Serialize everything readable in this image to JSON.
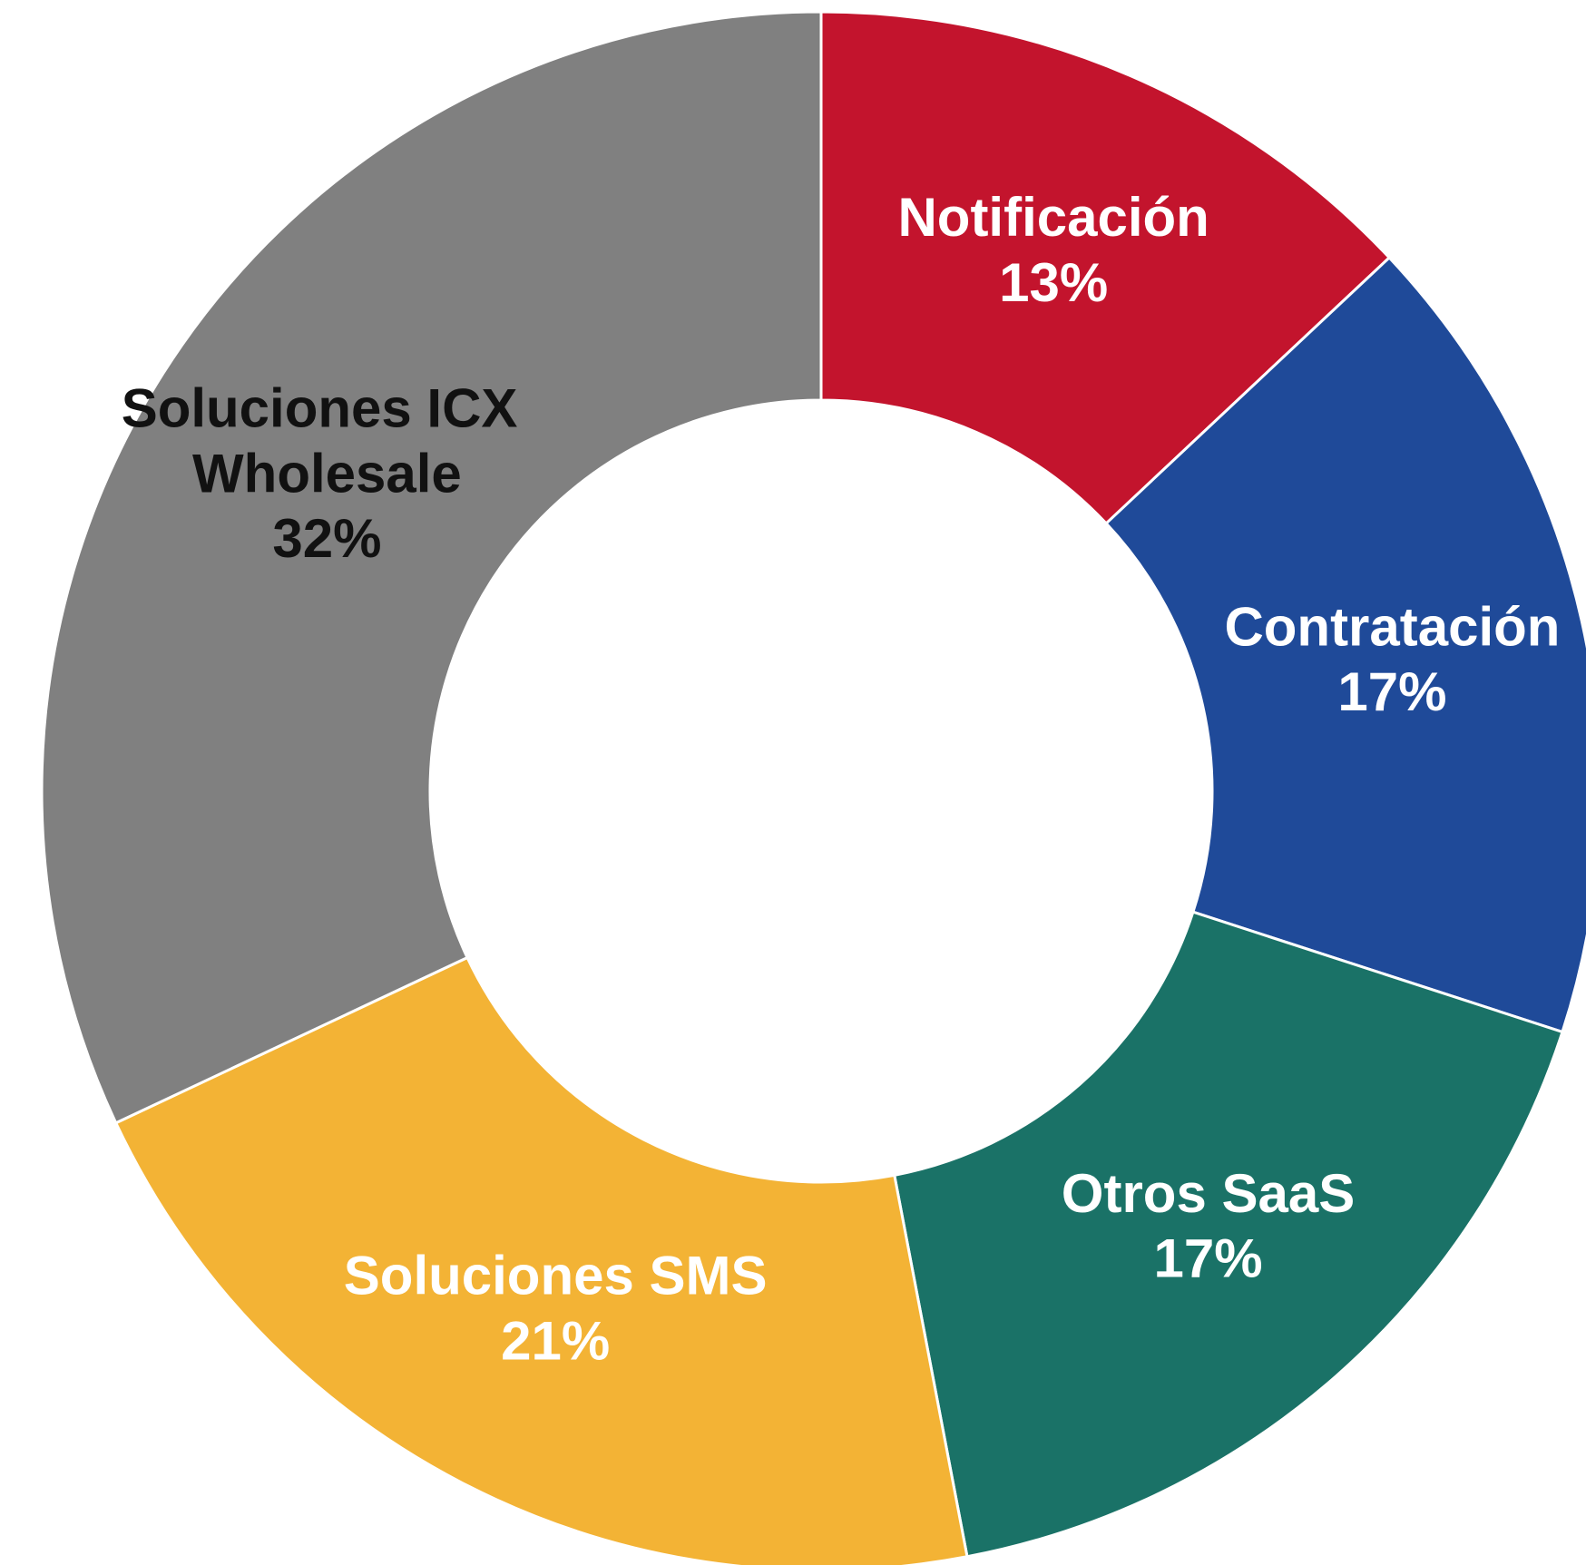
{
  "chart_data": {
    "type": "donut",
    "categories": [
      "Notificación",
      "Contratación",
      "Otros SaaS",
      "Soluciones SMS",
      "Soluciones ICX Wholesale"
    ],
    "values": [
      13,
      17,
      17,
      21,
      32
    ],
    "value_labels": [
      "13%",
      "17%",
      "17%",
      "21%",
      "32%"
    ],
    "colors": [
      "#c3142d",
      "#1f4a99",
      "#1a7267",
      "#f3b335",
      "#808080"
    ],
    "label_colors": [
      "#ffffff",
      "#ffffff",
      "#ffffff",
      "#ffffff",
      "#111111"
    ]
  }
}
